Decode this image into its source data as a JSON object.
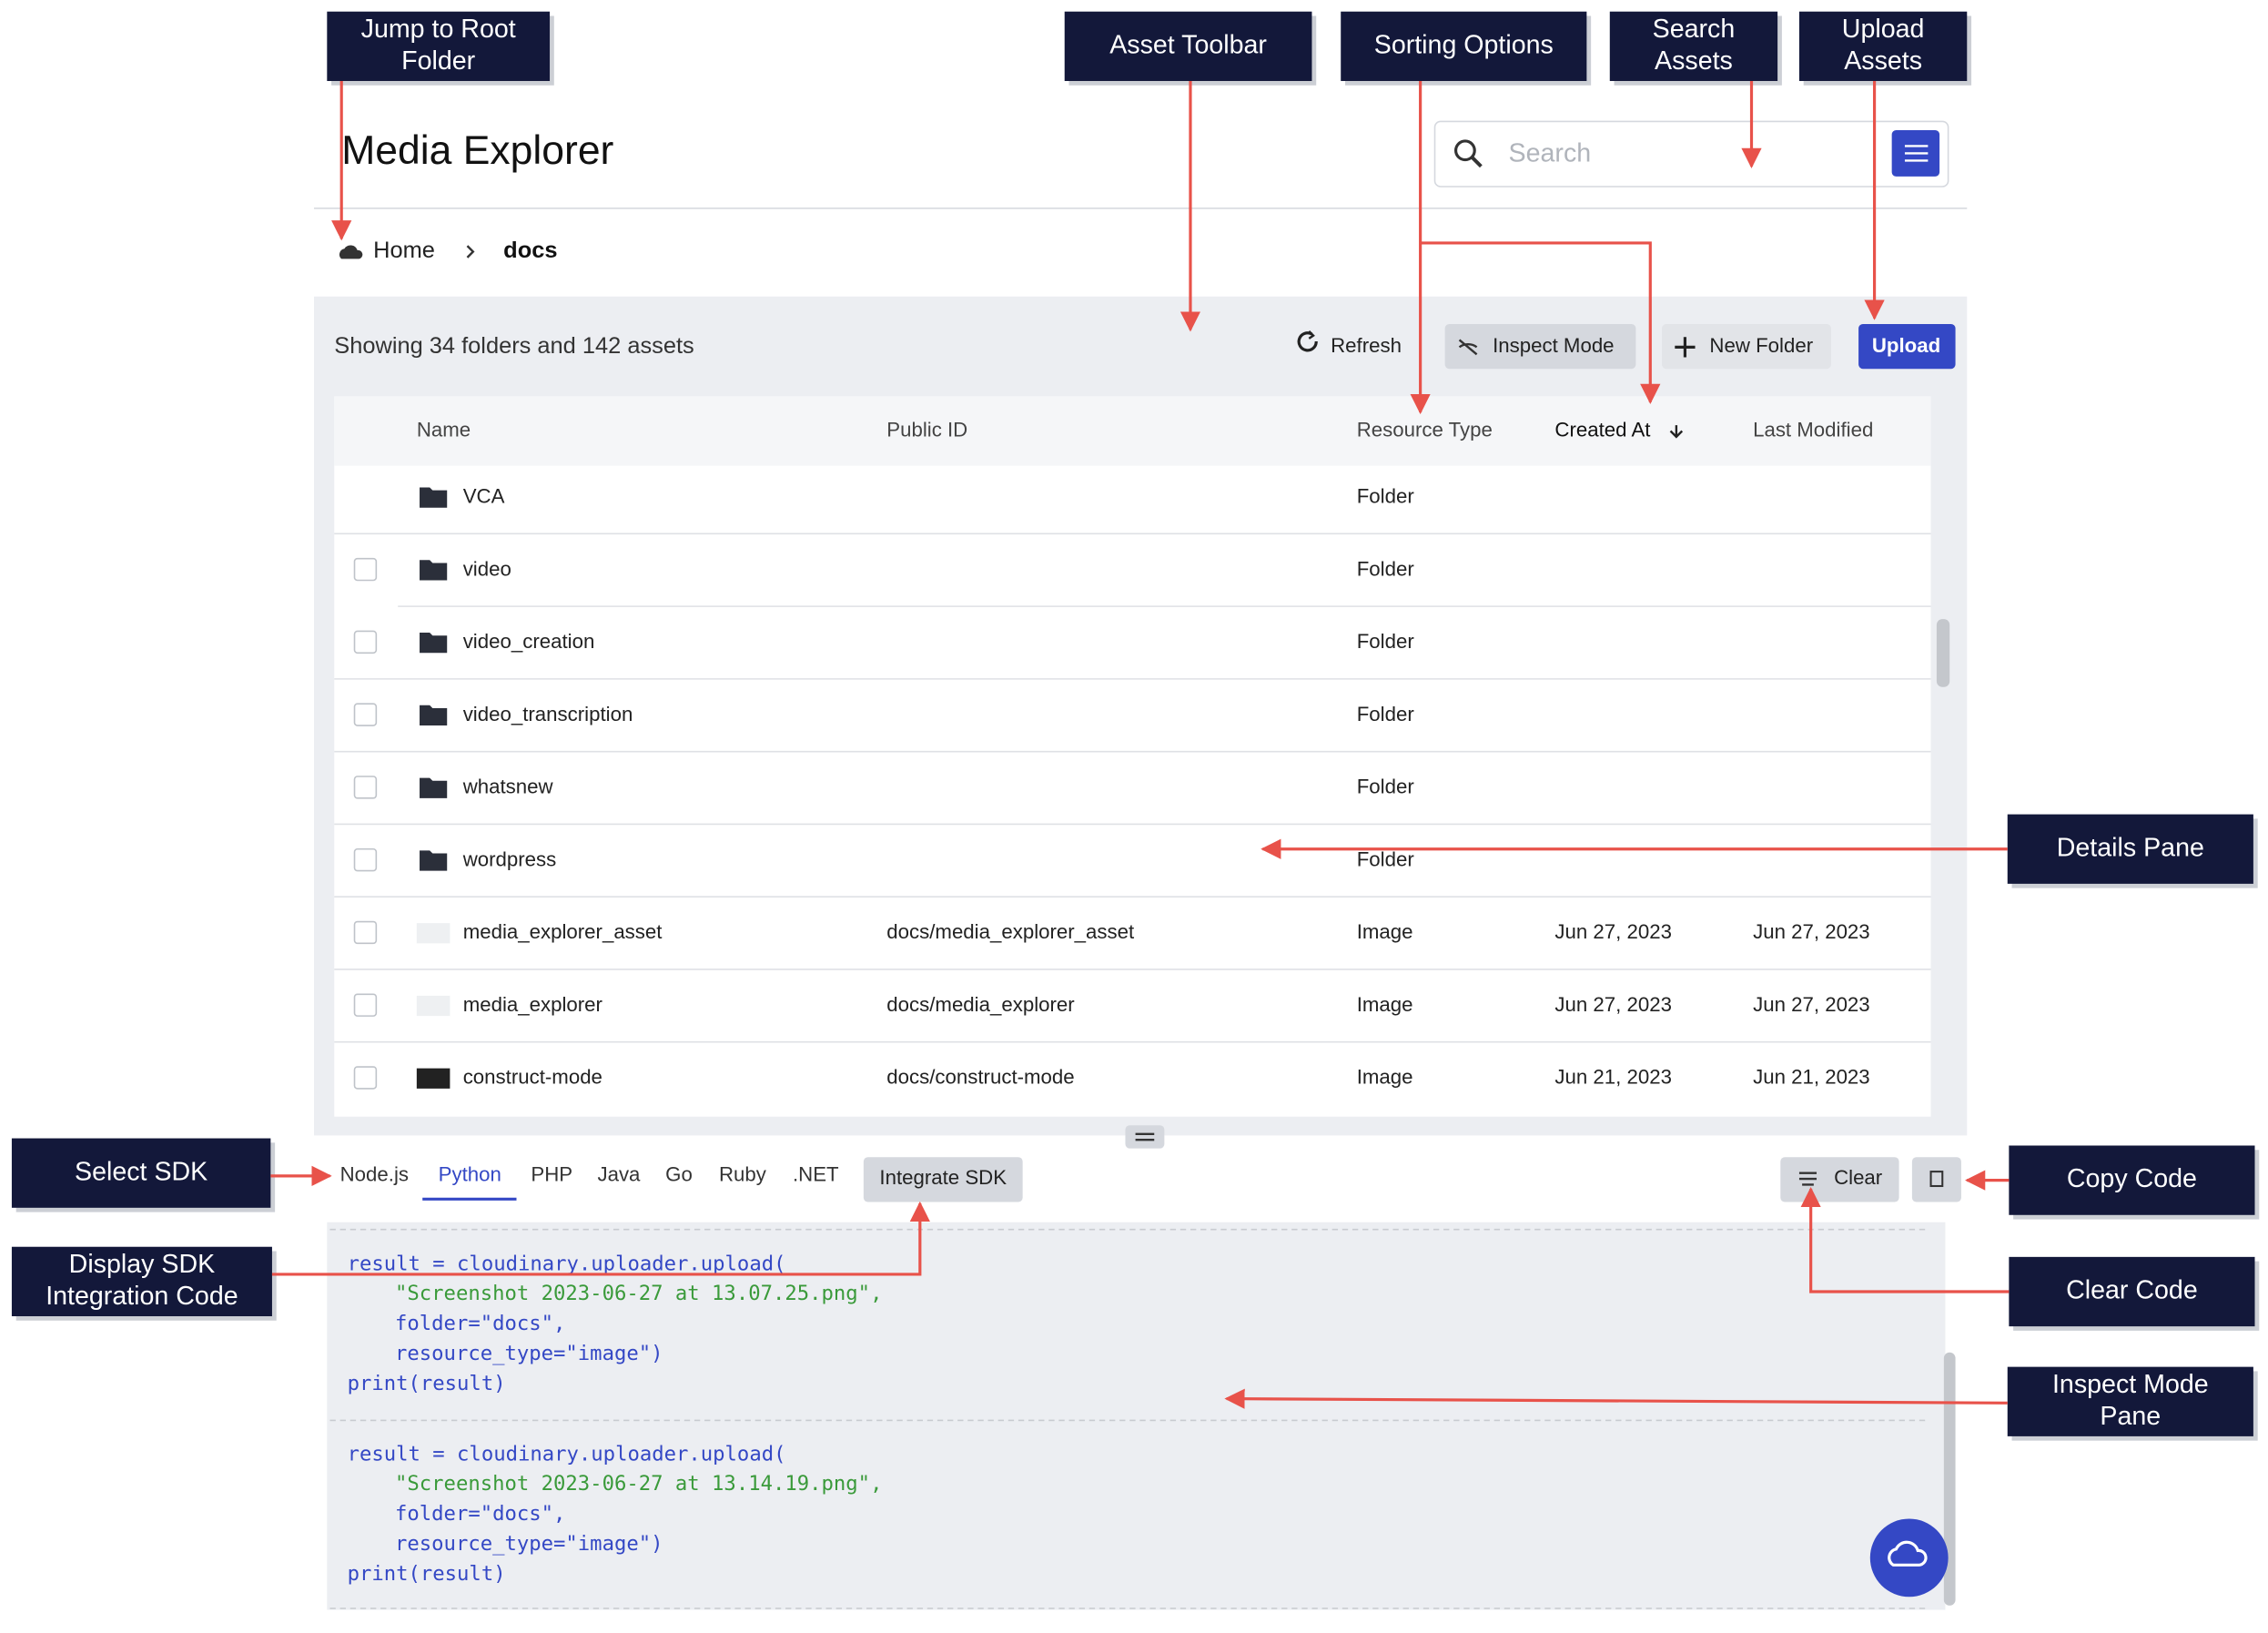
{
  "callouts": [
    {
      "lines": [
        "Jump to Root",
        "Folder"
      ]
    },
    {
      "lines": [
        "Asset Toolbar"
      ]
    },
    {
      "lines": [
        "Sorting Options"
      ]
    },
    {
      "lines": [
        "Search",
        "Assets"
      ]
    },
    {
      "lines": [
        "Upload",
        "Assets"
      ]
    },
    {
      "lines": [
        "Details Pane"
      ]
    },
    {
      "lines": [
        "Select SDK"
      ]
    },
    {
      "lines": [
        "Display SDK",
        "Integration Code"
      ]
    },
    {
      "lines": [
        "Copy Code"
      ]
    },
    {
      "lines": [
        "Clear Code"
      ]
    },
    {
      "lines": [
        "Inspect Mode",
        "Pane"
      ]
    }
  ],
  "header": {
    "title": "Media Explorer",
    "search_placeholder": "Search"
  },
  "breadcrumb": {
    "root": "Home",
    "current": "docs"
  },
  "toolbar": {
    "summary": "Showing 34 folders and 142 assets",
    "buttons": [
      "Refresh",
      "Inspect Mode",
      "New Folder",
      "Upload"
    ]
  },
  "table": {
    "columns": [
      "Name",
      "Public ID",
      "Resource Type",
      "Created At",
      "Last Modified"
    ],
    "rows": [
      {
        "name": "VCA",
        "type": "Folder"
      },
      {
        "name": "video",
        "type": "Folder"
      },
      {
        "name": "video_creation",
        "type": "Folder"
      },
      {
        "name": "video_transcription",
        "type": "Folder"
      },
      {
        "name": "whatsnew",
        "type": "Folder"
      },
      {
        "name": "wordpress",
        "type": "Folder"
      },
      {
        "name": "media_explorer_asset",
        "public_id": "docs/media_explorer_asset",
        "type": "Image",
        "created": "Jun 27, 2023",
        "modified": "Jun 27, 2023"
      },
      {
        "name": "media_explorer",
        "public_id": "docs/media_explorer",
        "type": "Image",
        "created": "Jun 27, 2023",
        "modified": "Jun 27, 2023"
      },
      {
        "name": "construct-mode",
        "public_id": "docs/construct-mode",
        "type": "Image",
        "created": "Jun 21, 2023",
        "modified": "Jun 21, 2023"
      }
    ]
  },
  "sdk": {
    "tabs": [
      "Node.js",
      "Python",
      "PHP",
      "Java",
      "Go",
      "Ruby",
      ".NET"
    ],
    "integrate": "Integrate SDK",
    "clear": "Clear",
    "code_blocks": [
      [
        "result = cloudinary.uploader.upload(",
        "\"Screenshot 2023-06-27 at 13.07.25.png\",",
        "folder=\"docs\",",
        "resource_type=\"image\")",
        "print(result)"
      ],
      [
        "result = cloudinary.uploader.upload(",
        "\"Screenshot 2023-06-27 at 13.14.19.png\",",
        "folder=\"docs\",",
        "resource_type=\"image\")",
        "print(result)"
      ]
    ]
  }
}
